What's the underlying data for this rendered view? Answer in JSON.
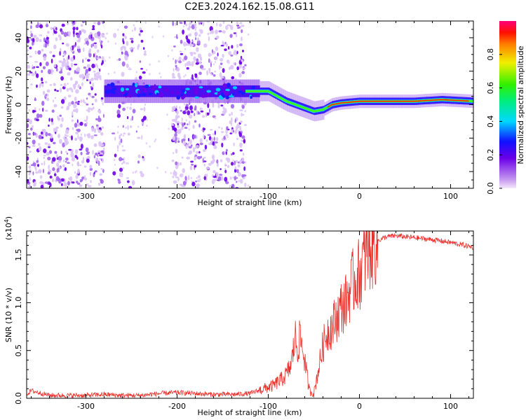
{
  "title": "C2E3.2024.162.15.08.G11",
  "colors": {
    "snr_line": "#e8302a",
    "spectrogram_low": "#d6b4f4",
    "spectrogram_mid": "#7b16e6",
    "spectrogram_high": "#e8302a"
  },
  "chart_data": [
    {
      "type": "heatmap",
      "name": "spectrogram",
      "title": "C2E3.2024.162.15.08.G11",
      "xlabel": "Height of straight line (km)",
      "ylabel": "Frequency (Hz)",
      "xlim": [
        -365,
        125
      ],
      "ylim": [
        -50,
        50
      ],
      "xticks": [
        -300,
        -200,
        -100,
        0,
        100
      ],
      "xtick_labels": [
        "-300",
        "-200",
        "-100",
        "0",
        "100"
      ],
      "yticks": [
        -40,
        -20,
        0,
        20,
        40
      ],
      "ytick_labels": [
        "-40",
        "-20",
        "0",
        "20",
        "40"
      ],
      "colorbar": {
        "label": "Normalized spectral amplitude",
        "range": [
          0,
          1
        ],
        "ticks": [
          0.0,
          0.2,
          0.4,
          0.6,
          0.8
        ],
        "tick_labels": [
          "0.0",
          "0.2",
          "0.4",
          "0.6",
          "0.8"
        ],
        "colormap": "rainbow (magenta-violet-blue-cyan-green-yellow-red)"
      },
      "ridge_frequency": {
        "x": [
          -280,
          -250,
          -220,
          -180,
          -150,
          -130,
          -110,
          -100,
          -90,
          -80,
          -70,
          -60,
          -50,
          -40,
          -30,
          -20,
          0,
          30,
          60,
          90,
          125
        ],
        "y": [
          8,
          8,
          8,
          8,
          8,
          8,
          8,
          8,
          5,
          2,
          0,
          -2,
          -4,
          -3,
          0,
          1,
          2,
          2,
          2,
          3,
          2
        ]
      },
      "noise_regions_x": [
        [
          -365,
          -280
        ],
        [
          -270,
          -235
        ],
        [
          -205,
          -125
        ]
      ]
    },
    {
      "type": "line",
      "name": "snr",
      "xlabel": "Height of straight line (km)",
      "ylabel": "SNR (10 * v/v)",
      "y_multiplier": "(x10^4)",
      "xlim": [
        -365,
        125
      ],
      "ylim": [
        0,
        17500
      ],
      "xticks": [
        -300,
        -200,
        -100,
        0,
        100
      ],
      "xtick_labels": [
        "-300",
        "-200",
        "-100",
        "0",
        "100"
      ],
      "yticks": [
        0,
        5000,
        10000,
        15000
      ],
      "ytick_labels": [
        "0.0",
        "0.5",
        "1.0",
        "1.5"
      ],
      "grid": false,
      "series": [
        {
          "x": [
            -365,
            -360,
            -340,
            -320,
            -300,
            -280,
            -260,
            -240,
            -220,
            -200,
            -180,
            -160,
            -140,
            -120,
            -105,
            -95,
            -85,
            -80,
            -75,
            -70,
            -68,
            -65,
            -60,
            -55,
            -50,
            -45,
            -40,
            -35,
            -30,
            -25,
            -20,
            -15,
            -10,
            -5,
            0,
            5,
            10,
            20,
            30,
            40,
            60,
            80,
            100,
            125
          ],
          "y": [
            400,
            800,
            300,
            300,
            300,
            400,
            300,
            300,
            500,
            600,
            500,
            400,
            400,
            500,
            1000,
            1300,
            2000,
            2500,
            3500,
            6500,
            5000,
            6500,
            4000,
            800,
            500,
            3000,
            5500,
            7000,
            7500,
            8500,
            9500,
            10000,
            11500,
            12500,
            13000,
            14500,
            15500,
            16500,
            16900,
            17000,
            16800,
            16600,
            16300,
            15800
          ]
        }
      ]
    }
  ]
}
